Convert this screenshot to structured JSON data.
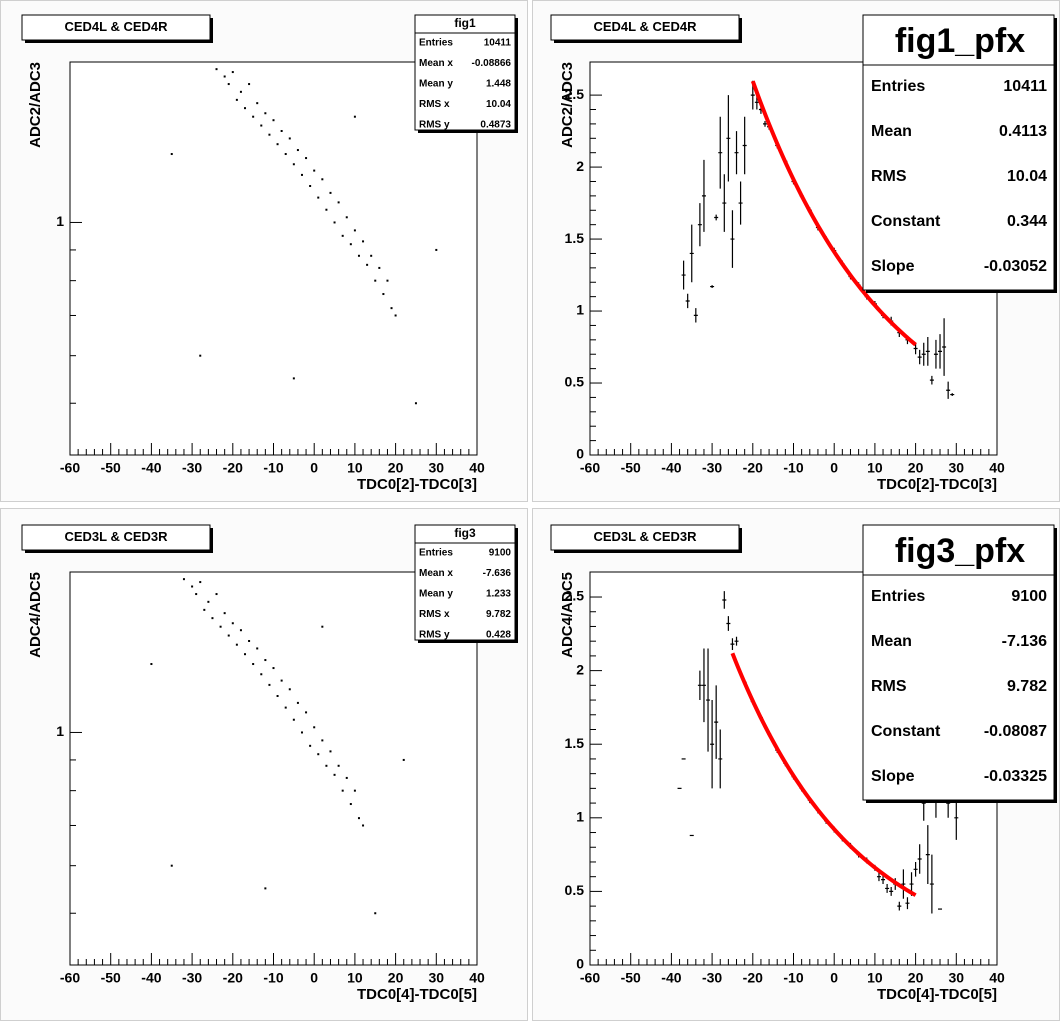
{
  "chart_data": [
    {
      "type": "scatter",
      "title": "CED4L & CED4R",
      "stats_title": "fig1",
      "stats": [
        {
          "name": "Entries",
          "value": 10411
        },
        {
          "name": "Mean x",
          "value": -0.08866
        },
        {
          "name": "Mean y",
          "value": 1.448
        },
        {
          "name": "RMS x",
          "value": 10.04
        },
        {
          "name": "RMS y",
          "value": 0.4873
        }
      ],
      "xlabel": "TDC0[2]-TDC0[3]",
      "ylabel": "ADC2/ADC3",
      "xlim": [
        -60,
        40
      ],
      "xticks": [
        -60,
        -50,
        -40,
        -30,
        -20,
        -10,
        0,
        10,
        20,
        30,
        40
      ],
      "ylim": [
        0.41,
        1.85
      ],
      "yticks": [
        1
      ],
      "log_y": true,
      "color": "#000000",
      "x": [
        -24,
        -22,
        -21,
        -20,
        -19,
        -18,
        -17,
        -16,
        -15,
        -14,
        -13,
        -12,
        -11,
        -10,
        -9,
        -8,
        -7,
        -6,
        -5,
        -4,
        -3,
        -2,
        -1,
        0,
        1,
        2,
        3,
        4,
        5,
        6,
        7,
        8,
        9,
        10,
        11,
        12,
        13,
        14,
        15,
        16,
        17,
        18,
        19,
        20,
        -35,
        -28,
        30,
        25,
        -5,
        10
      ],
      "y": [
        1.8,
        1.75,
        1.7,
        1.78,
        1.6,
        1.65,
        1.55,
        1.7,
        1.5,
        1.58,
        1.45,
        1.52,
        1.4,
        1.48,
        1.35,
        1.42,
        1.3,
        1.38,
        1.25,
        1.32,
        1.2,
        1.28,
        1.15,
        1.22,
        1.1,
        1.18,
        1.05,
        1.12,
        1.0,
        1.08,
        0.95,
        1.02,
        0.92,
        0.97,
        0.88,
        0.93,
        0.85,
        0.88,
        0.8,
        0.84,
        0.76,
        0.8,
        0.72,
        0.7,
        1.3,
        0.6,
        0.9,
        0.5,
        0.55,
        1.5
      ]
    },
    {
      "type": "profile",
      "title": "CED4L & CED4R",
      "stats_title": "fig1_pfx",
      "stats": [
        {
          "name": "Entries",
          "value": 10411
        },
        {
          "name": "Mean",
          "value": 0.4113
        },
        {
          "name": "RMS",
          "value": 10.04
        },
        {
          "name": "Constant",
          "value": 0.344
        },
        {
          "name": "Slope",
          "value": -0.03052
        }
      ],
      "xlabel": "TDC0[2]-TDC0[3]",
      "ylabel": "ADC2/ADC3",
      "xlim": [
        -60,
        40
      ],
      "xticks": [
        -60,
        -50,
        -40,
        -30,
        -20,
        -10,
        0,
        10,
        20,
        30,
        40
      ],
      "ylim": [
        0,
        2.73
      ],
      "yticks": [
        0,
        0.5,
        1,
        1.5,
        2,
        2.5
      ],
      "color": "#000000",
      "fit": {
        "color": "#ff0000",
        "xlim": [
          -20,
          20
        ]
      },
      "x": [
        -37,
        -36,
        -35,
        -34,
        -33,
        -32,
        -30,
        -29,
        -28,
        -27,
        -26,
        -25,
        -24,
        -23,
        -22,
        -20,
        -19,
        -18,
        -17,
        -16,
        -14,
        -12,
        -10,
        -8,
        -6,
        -4,
        -2,
        0,
        2,
        4,
        6,
        8,
        10,
        12,
        14,
        16,
        18,
        20,
        21,
        22,
        23,
        24,
        25,
        26,
        27,
        28,
        29
      ],
      "values": [
        1.25,
        1.07,
        1.4,
        0.97,
        1.6,
        1.8,
        1.17,
        1.65,
        2.1,
        1.75,
        2.2,
        1.5,
        2.1,
        1.75,
        2.15,
        2.5,
        2.45,
        2.4,
        2.3,
        2.28,
        2.15,
        2.04,
        1.9,
        1.8,
        1.7,
        1.58,
        1.5,
        1.42,
        1.33,
        1.24,
        1.18,
        1.1,
        1.05,
        0.97,
        0.93,
        0.85,
        0.8,
        0.74,
        0.68,
        0.7,
        0.72,
        0.52,
        0.7,
        0.72,
        0.75,
        0.45,
        0.42
      ],
      "errors": [
        0.1,
        0.05,
        0.2,
        0.05,
        0.15,
        0.25,
        0.01,
        0.02,
        0.25,
        0.2,
        0.3,
        0.2,
        0.15,
        0.15,
        0.2,
        0.1,
        0.05,
        0.03,
        0.02,
        0.02,
        0.02,
        0.02,
        0.02,
        0.02,
        0.02,
        0.02,
        0.02,
        0.02,
        0.02,
        0.02,
        0.02,
        0.02,
        0.02,
        0.02,
        0.03,
        0.03,
        0.03,
        0.04,
        0.05,
        0.08,
        0.1,
        0.03,
        0.1,
        0.12,
        0.2,
        0.06,
        0.01
      ]
    },
    {
      "type": "scatter",
      "title": "CED3L & CED3R",
      "stats_title": "fig3",
      "stats": [
        {
          "name": "Entries",
          "value": 9100
        },
        {
          "name": "Mean x",
          "value": -7.636
        },
        {
          "name": "Mean y",
          "value": 1.233
        },
        {
          "name": "RMS x",
          "value": 9.782
        },
        {
          "name": "RMS y",
          "value": 0.428
        }
      ],
      "xlabel": "TDC0[4]-TDC0[5]",
      "ylabel": "ADC4/ADC5",
      "xlim": [
        -60,
        40
      ],
      "xticks": [
        -60,
        -50,
        -40,
        -30,
        -20,
        -10,
        0,
        10,
        20,
        30,
        40
      ],
      "ylim": [
        0.41,
        1.85
      ],
      "yticks": [
        1
      ],
      "log_y": true,
      "color": "#000000",
      "x": [
        -32,
        -30,
        -29,
        -28,
        -27,
        -26,
        -25,
        -24,
        -23,
        -22,
        -21,
        -20,
        -19,
        -18,
        -17,
        -16,
        -15,
        -14,
        -13,
        -12,
        -11,
        -10,
        -9,
        -8,
        -7,
        -6,
        -5,
        -4,
        -3,
        -2,
        -1,
        0,
        1,
        2,
        3,
        4,
        5,
        6,
        7,
        8,
        9,
        10,
        11,
        12,
        -40,
        -35,
        22,
        15,
        -12,
        2
      ],
      "y": [
        1.8,
        1.75,
        1.7,
        1.78,
        1.6,
        1.65,
        1.55,
        1.7,
        1.5,
        1.58,
        1.45,
        1.52,
        1.4,
        1.48,
        1.35,
        1.42,
        1.3,
        1.38,
        1.25,
        1.32,
        1.2,
        1.28,
        1.15,
        1.22,
        1.1,
        1.18,
        1.05,
        1.12,
        1.0,
        1.08,
        0.95,
        1.02,
        0.92,
        0.97,
        0.88,
        0.93,
        0.85,
        0.88,
        0.8,
        0.84,
        0.76,
        0.8,
        0.72,
        0.7,
        1.3,
        0.6,
        0.9,
        0.5,
        0.55,
        1.5
      ]
    },
    {
      "type": "profile",
      "title": "CED3L & CED3R",
      "stats_title": "fig3_pfx",
      "stats": [
        {
          "name": "Entries",
          "value": 9100
        },
        {
          "name": "Mean",
          "value": -7.136
        },
        {
          "name": "RMS",
          "value": 9.782
        },
        {
          "name": "Constant",
          "value": -0.08087
        },
        {
          "name": "Slope",
          "value": -0.03325
        }
      ],
      "xlabel": "TDC0[4]-TDC0[5]",
      "ylabel": "ADC4/ADC5",
      "xlim": [
        -60,
        40
      ],
      "xticks": [
        -60,
        -50,
        -40,
        -30,
        -20,
        -10,
        0,
        10,
        20,
        30,
        40
      ],
      "ylim": [
        0,
        2.67
      ],
      "yticks": [
        0,
        0.5,
        1,
        1.5,
        2,
        2.5
      ],
      "color": "#000000",
      "fit": {
        "color": "#ff0000",
        "xlim": [
          -25,
          20
        ]
      },
      "x": [
        -38,
        -37,
        -35,
        -33,
        -32,
        -31,
        -30,
        -29,
        -28,
        -27,
        -26,
        -25,
        -24,
        -22,
        -20,
        -18,
        -16,
        -14,
        -12,
        -10,
        -8,
        -6,
        -4,
        -2,
        0,
        2,
        4,
        6,
        8,
        10,
        11,
        12,
        13,
        14,
        15,
        16,
        17,
        18,
        19,
        20,
        21,
        22,
        23,
        24,
        25,
        26,
        28,
        30
      ],
      "values": [
        1.2,
        1.4,
        0.88,
        1.9,
        1.9,
        1.8,
        1.5,
        1.65,
        1.4,
        2.48,
        2.32,
        2.18,
        2.2,
        1.92,
        1.79,
        1.68,
        1.57,
        1.46,
        1.37,
        1.28,
        1.2,
        1.12,
        1.05,
        0.98,
        0.92,
        0.86,
        0.81,
        0.75,
        0.71,
        0.66,
        0.6,
        0.58,
        0.52,
        0.5,
        0.55,
        0.4,
        0.55,
        0.42,
        0.55,
        0.65,
        0.72,
        1.1,
        0.75,
        0.55,
        1.2,
        0.38,
        1.1,
        1.0
      ],
      "errors": [
        0,
        0,
        0,
        0.1,
        0.25,
        0.35,
        0.3,
        0.25,
        0.2,
        0.06,
        0.05,
        0.04,
        0.03,
        0.02,
        0.02,
        0.02,
        0.02,
        0.02,
        0.02,
        0.02,
        0.02,
        0.02,
        0.02,
        0.02,
        0.02,
        0.02,
        0.02,
        0.02,
        0.02,
        0.02,
        0.03,
        0.03,
        0.03,
        0.03,
        0.04,
        0.03,
        0.1,
        0.04,
        0.08,
        0.05,
        0.1,
        0.12,
        0.2,
        0.2,
        0.2,
        0,
        0.1,
        0.15
      ]
    }
  ]
}
